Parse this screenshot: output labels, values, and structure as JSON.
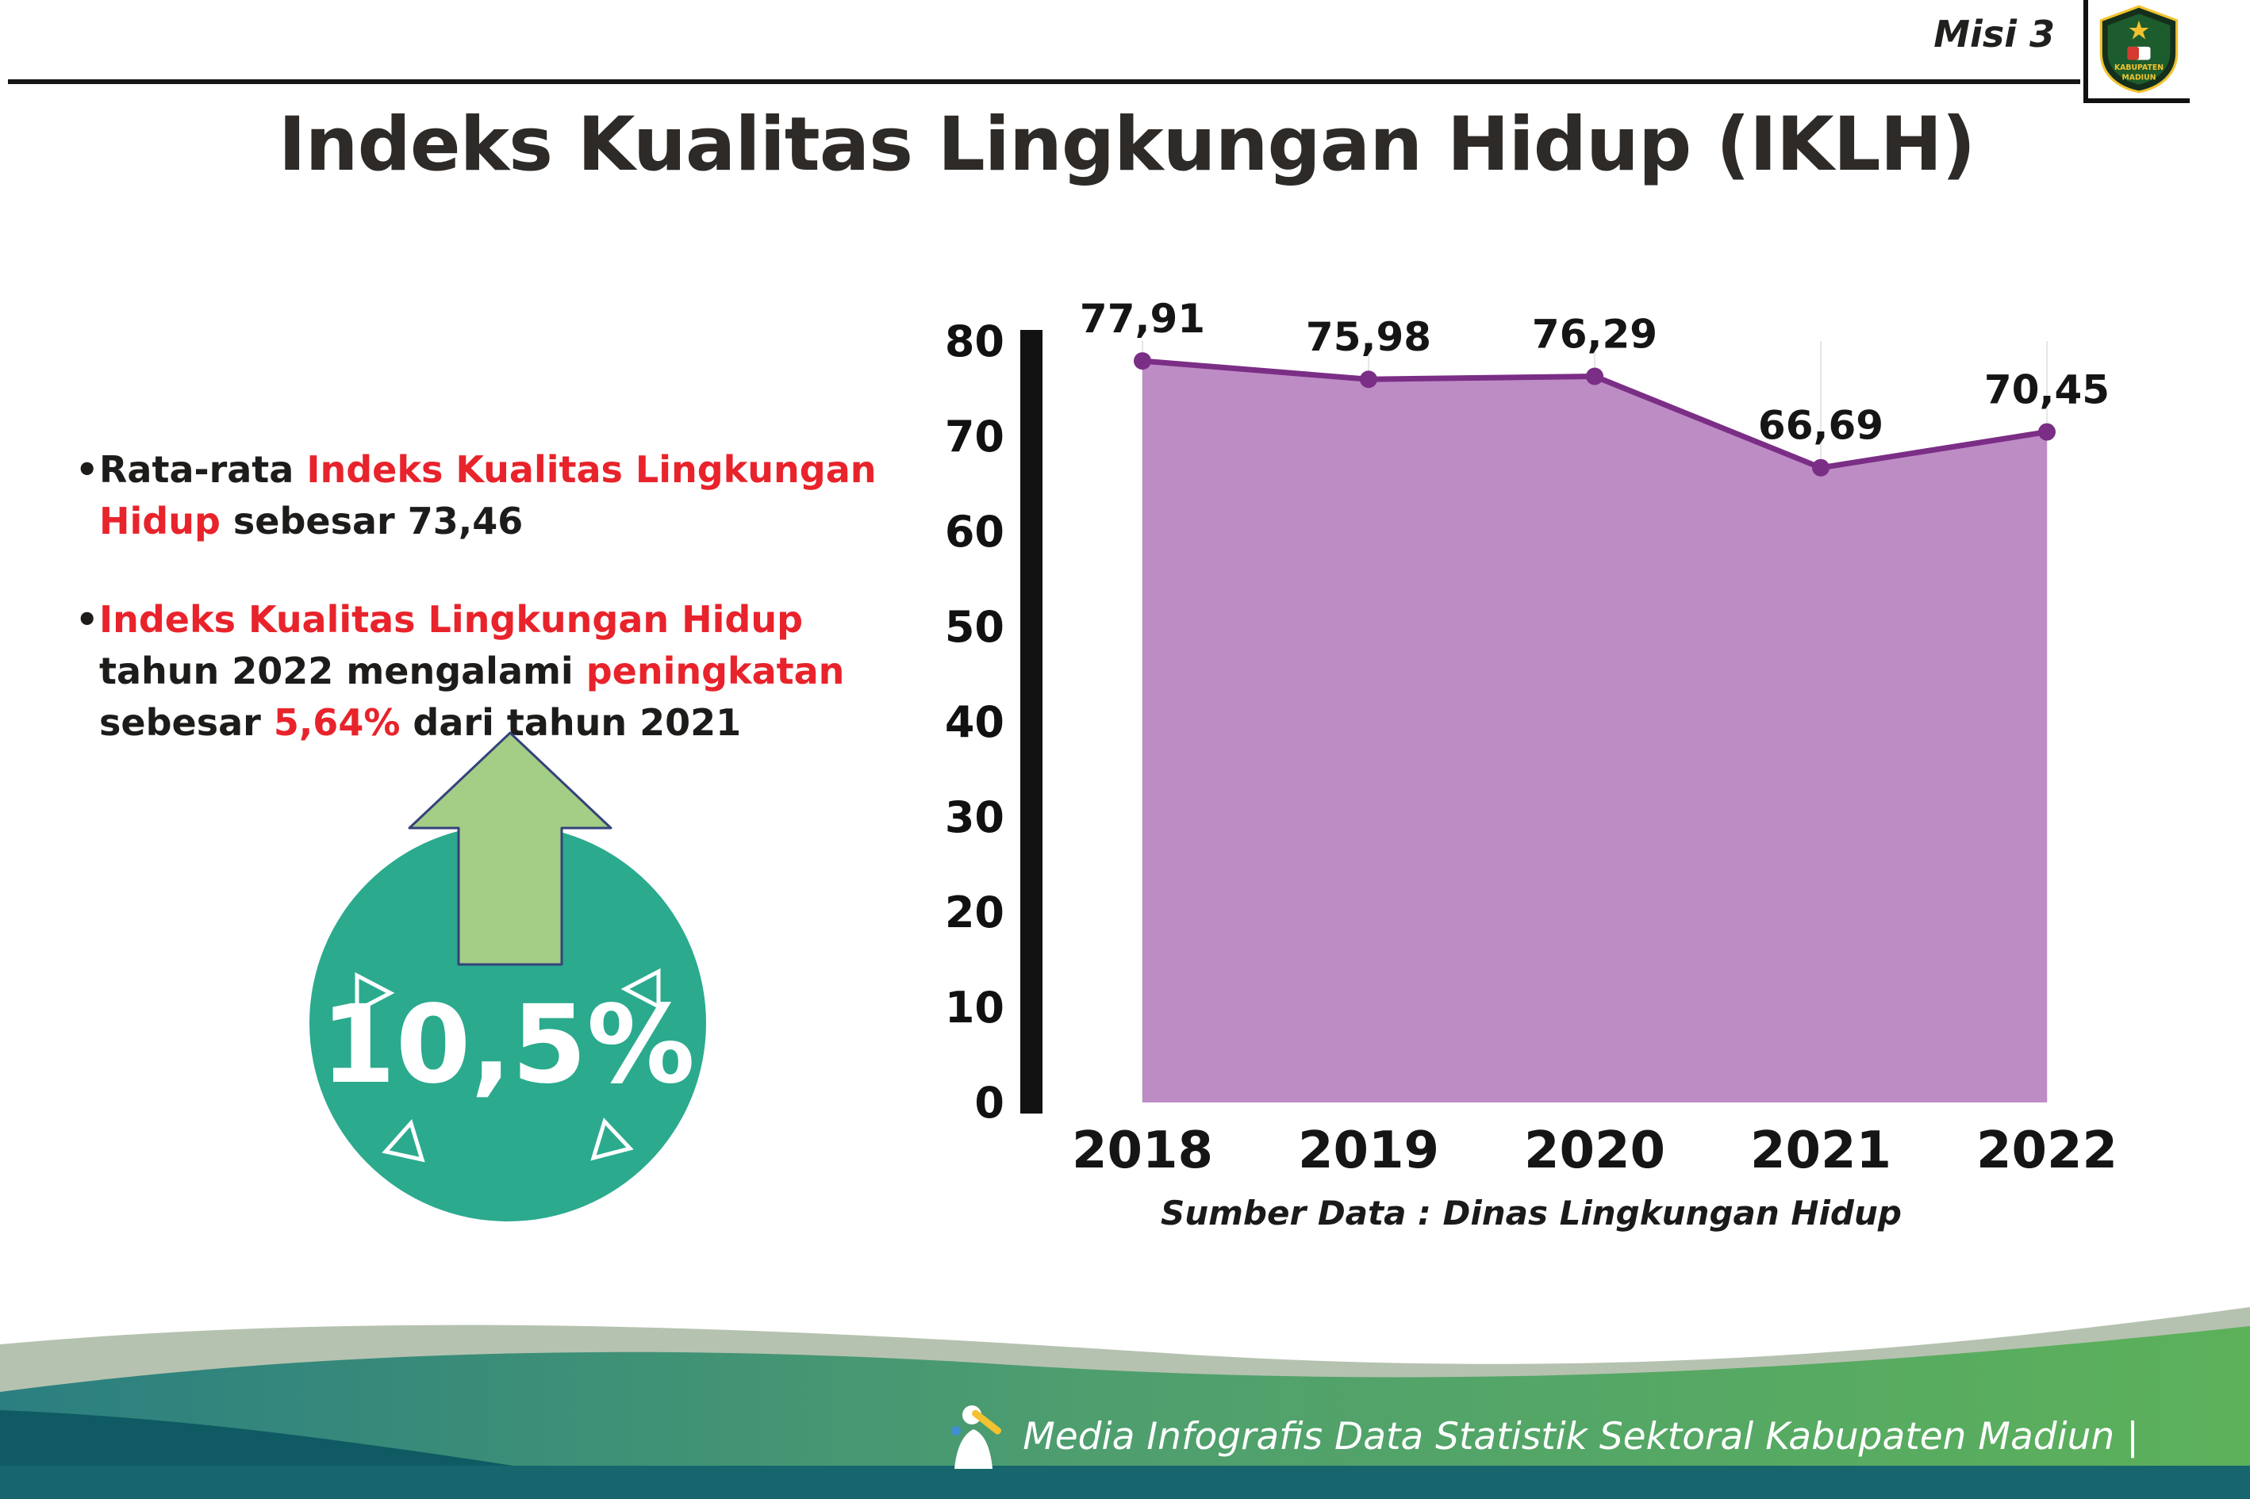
{
  "header": {
    "misi_label": "Misi 3",
    "title": "Indeks Kualitas Lingkungan Hidup (IKLH)",
    "logo_text_top": "KABUPATEN",
    "logo_text_bottom": "MADIUN"
  },
  "bullets": {
    "b1": {
      "s0": "Rata-rata ",
      "s1": "Indeks Kualitas Lingkungan Hidup",
      "s2": " sebesar 73,46"
    },
    "b2": {
      "s0": "Indeks Kualitas Lingkungan Hidup",
      "s1": " tahun 2022 mengalami ",
      "s2": "peningkatan",
      "s3": " sebesar ",
      "s4": "5,64%",
      "s5": " dari tahun 2021"
    }
  },
  "badge": {
    "value": "10,5%",
    "circle_color": "#2baa8e",
    "arrow_color": "#a4cd86"
  },
  "chart_data": {
    "type": "area",
    "title": "",
    "xlabel": "",
    "ylabel": "",
    "categories": [
      "2018",
      "2019",
      "2020",
      "2021",
      "2022"
    ],
    "values": [
      77.91,
      75.98,
      76.29,
      66.69,
      70.45
    ],
    "value_labels": [
      "77,91",
      "75,98",
      "76,29",
      "66,69",
      "70,45"
    ],
    "ylim": [
      0,
      80
    ],
    "yticks": [
      0,
      10,
      20,
      30,
      40,
      50,
      60,
      70,
      80
    ],
    "grid": "vertical-light",
    "legend": "none",
    "source": "Sumber Data : Dinas Lingkungan Hidup",
    "colors": {
      "area_fill": "#bd8cc5",
      "line": "#7b2e85",
      "point": "#7b2e85",
      "axis_bar": "#121212"
    }
  },
  "footer": {
    "credit": "Media Infografis Data Statistik Sektoral Kabupaten Madiun |"
  },
  "colors": {
    "accent_red": "#e8232b",
    "teal_badge": "#2baa8e",
    "footer_teal": "#2b7f80",
    "footer_green": "#5cb15a",
    "footer_strip": "#17666e"
  }
}
